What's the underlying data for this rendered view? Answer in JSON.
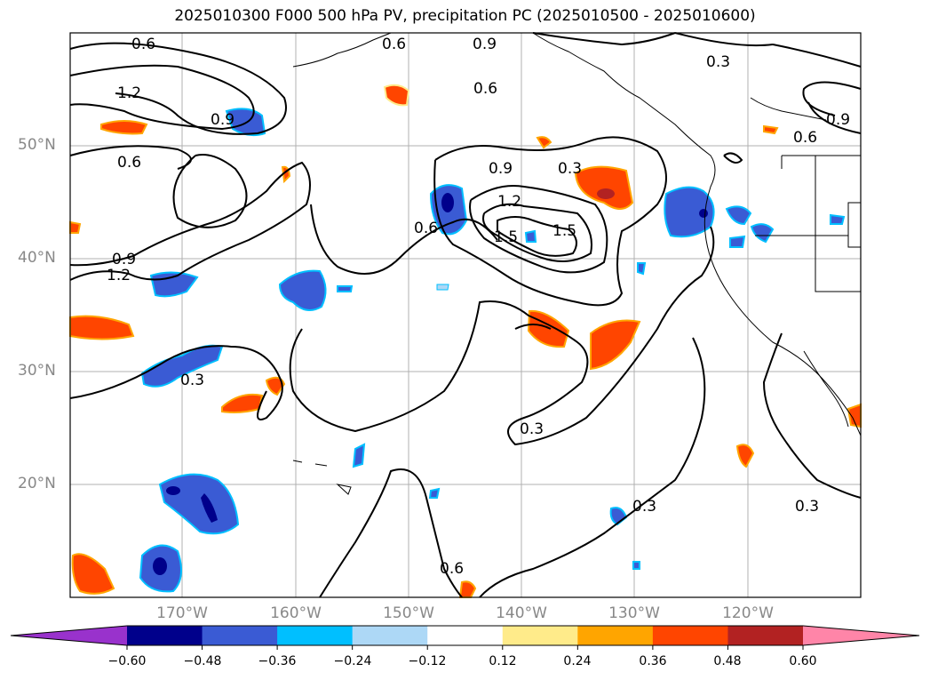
{
  "title": "2025010300 F000 500 hPa PV, precipitation PC (2025010500 - 2025010600)",
  "lat_labels": [
    "50°N",
    "40°N",
    "30°N",
    "20°N"
  ],
  "lon_labels": [
    "170°W",
    "160°W",
    "150°W",
    "140°W",
    "130°W",
    "120°W"
  ],
  "contour_labels": [
    "0.6",
    "0.6",
    "0.9",
    "0.3",
    "1.2",
    "0.9",
    "0.6",
    "0.6",
    "0.9",
    "0.6",
    "0.9",
    "0.3",
    "1.2",
    "1.5",
    "1.5",
    "0.6",
    "0.9",
    "1.2",
    "0.3",
    "0.3",
    "0.3",
    "0.6",
    "0.3"
  ],
  "colorbar": {
    "ticks": [
      "−0.60",
      "−0.48",
      "−0.36",
      "−0.24",
      "−0.12",
      "0.12",
      "0.24",
      "0.36",
      "0.48",
      "0.60"
    ],
    "colors": [
      "#9932cc",
      "#00008b",
      "#3a5bd4",
      "#00bfff",
      "#add8f6",
      "#ffffff",
      "#ffeb8a",
      "#ffa500",
      "#ff4500",
      "#b22222",
      "#ff85a8"
    ]
  }
}
